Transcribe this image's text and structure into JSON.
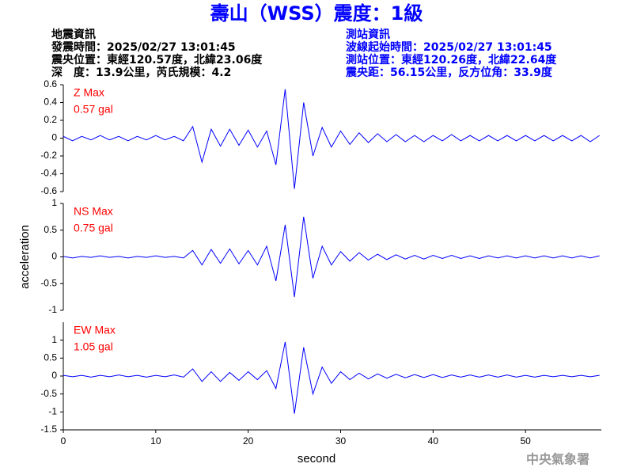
{
  "header": {
    "title": "壽山（WSS）震度：1級",
    "left": [
      "地震資訊",
      "發震時間：2025/02/27 13:01:45",
      "震央位置：東經120.57度，北緯23.06度",
      "深　度：13.9公里，芮氏規模：4.2"
    ],
    "right": [
      "測站資訊",
      "波線起始時間：2025/02/27 13:01:45",
      "測站位置：東經120.26度，北緯22.64度",
      "震央距：56.15公里，反方位角：33.9度"
    ],
    "footer": "中央氣象署"
  },
  "chart_data": [
    {
      "type": "line",
      "label": "Z Max",
      "max_label": "0.57 gal",
      "color": "#0000ff",
      "xlim": [
        0,
        58.2
      ],
      "ylim": [
        -0.6,
        0.6
      ],
      "yticks": [
        0.6,
        0.4,
        0.2,
        0,
        -0.2,
        -0.4,
        -0.6
      ],
      "x": [
        0,
        1,
        2,
        3,
        4,
        5,
        6,
        7,
        8,
        9,
        10,
        11,
        12,
        13,
        14,
        15,
        16,
        17,
        18,
        19,
        20,
        21,
        22,
        23,
        24,
        25,
        26,
        27,
        28,
        29,
        30,
        31,
        32,
        33,
        34,
        35,
        36,
        37,
        38,
        39,
        40,
        41,
        42,
        43,
        44,
        45,
        46,
        47,
        48,
        49,
        50,
        51,
        52,
        53,
        54,
        55,
        56,
        57,
        58
      ],
      "values": [
        0.02,
        -0.03,
        0.02,
        -0.02,
        0.03,
        -0.02,
        0.02,
        -0.03,
        0.02,
        -0.02,
        0.03,
        -0.02,
        0.02,
        -0.03,
        0.13,
        -0.27,
        0.1,
        -0.09,
        0.1,
        -0.08,
        0.09,
        -0.1,
        0.08,
        -0.3,
        0.55,
        -0.57,
        0.4,
        -0.2,
        0.12,
        -0.1,
        0.08,
        -0.07,
        0.06,
        -0.05,
        0.05,
        -0.04,
        0.04,
        -0.04,
        0.03,
        -0.04,
        0.03,
        -0.03,
        0.04,
        -0.03,
        0.03,
        -0.03,
        0.03,
        -0.03,
        0.03,
        -0.03,
        0.03,
        -0.03,
        0.03,
        -0.03,
        0.03,
        -0.03,
        0.03,
        -0.04,
        0.03
      ]
    },
    {
      "type": "line",
      "label": "NS Max",
      "max_label": "0.75 gal",
      "color": "#0000ff",
      "ylabel": "acceleration",
      "xlim": [
        0,
        58.2
      ],
      "ylim": [
        -1,
        1
      ],
      "yticks": [
        1,
        0.5,
        0,
        -0.5,
        -1
      ],
      "x": [
        0,
        1,
        2,
        3,
        4,
        5,
        6,
        7,
        8,
        9,
        10,
        11,
        12,
        13,
        14,
        15,
        16,
        17,
        18,
        19,
        20,
        21,
        22,
        23,
        24,
        25,
        26,
        27,
        28,
        29,
        30,
        31,
        32,
        33,
        34,
        35,
        36,
        37,
        38,
        39,
        40,
        41,
        42,
        43,
        44,
        45,
        46,
        47,
        48,
        49,
        50,
        51,
        52,
        53,
        54,
        55,
        56,
        57,
        58
      ],
      "values": [
        0.01,
        -0.02,
        0.01,
        -0.01,
        0.02,
        -0.01,
        0.01,
        -0.02,
        0.01,
        -0.01,
        0.02,
        -0.01,
        0.01,
        -0.02,
        0.12,
        -0.15,
        0.14,
        -0.12,
        0.15,
        -0.13,
        0.12,
        -0.15,
        0.2,
        -0.45,
        0.6,
        -0.75,
        0.75,
        -0.4,
        0.2,
        -0.15,
        0.1,
        -0.08,
        0.08,
        -0.06,
        0.05,
        -0.05,
        0.04,
        -0.04,
        0.03,
        -0.04,
        0.03,
        -0.03,
        0.03,
        -0.03,
        0.02,
        -0.03,
        0.02,
        -0.02,
        0.02,
        -0.02,
        0.02,
        -0.02,
        0.02,
        -0.02,
        0.02,
        -0.02,
        0.02,
        -0.02,
        0.02
      ]
    },
    {
      "type": "line",
      "label": "EW Max",
      "max_label": "1.05 gal",
      "color": "#0000ff",
      "xlabel": "second",
      "xlim": [
        0,
        58.2
      ],
      "ylim": [
        -1.5,
        1.5
      ],
      "yticks": [
        1,
        0.5,
        0,
        -0.5,
        -1,
        -1.5
      ],
      "xticks": [
        0,
        10,
        20,
        30,
        40,
        50
      ],
      "x": [
        0,
        1,
        2,
        3,
        4,
        5,
        6,
        7,
        8,
        9,
        10,
        11,
        12,
        13,
        14,
        15,
        16,
        17,
        18,
        19,
        20,
        21,
        22,
        23,
        24,
        25,
        26,
        27,
        28,
        29,
        30,
        31,
        32,
        33,
        34,
        35,
        36,
        37,
        38,
        39,
        40,
        41,
        42,
        43,
        44,
        45,
        46,
        47,
        48,
        49,
        50,
        51,
        52,
        53,
        54,
        55,
        56,
        57,
        58
      ],
      "values": [
        0.02,
        -0.02,
        0.02,
        -0.03,
        0.02,
        -0.02,
        0.03,
        -0.02,
        0.02,
        -0.03,
        0.02,
        -0.02,
        0.03,
        -0.03,
        0.2,
        -0.15,
        0.12,
        -0.15,
        0.1,
        -0.12,
        0.12,
        -0.1,
        0.15,
        -0.35,
        0.95,
        -1.05,
        0.8,
        -0.5,
        0.25,
        -0.2,
        0.12,
        -0.1,
        0.08,
        -0.08,
        0.06,
        -0.06,
        0.05,
        -0.05,
        0.04,
        -0.04,
        0.04,
        -0.04,
        0.03,
        -0.03,
        0.03,
        -0.03,
        0.03,
        -0.03,
        0.03,
        -0.03,
        0.02,
        -0.03,
        0.02,
        -0.02,
        0.02,
        -0.02,
        0.02,
        -0.02,
        0.02
      ]
    }
  ]
}
